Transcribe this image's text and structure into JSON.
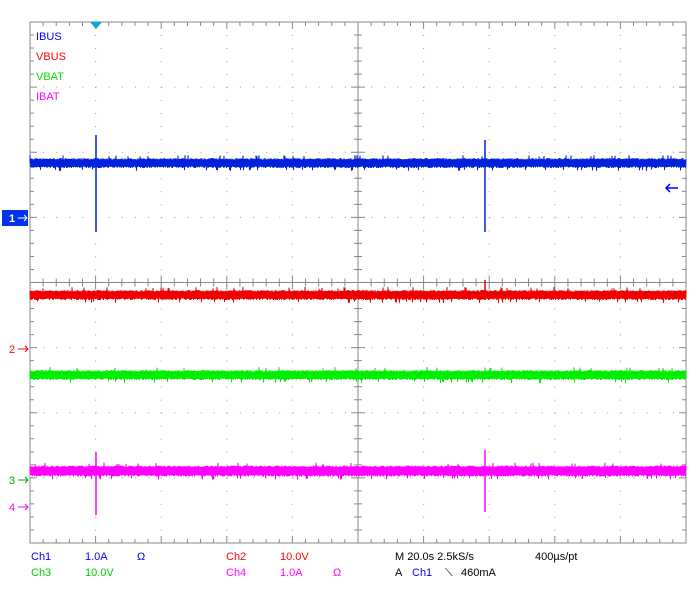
{
  "trace_labels": [
    {
      "text": "IBUS",
      "color": "#0000ff"
    },
    {
      "text": "VBUS",
      "color": "#ff0000"
    },
    {
      "text": "VBAT",
      "color": "#00dd00"
    },
    {
      "text": "IBAT",
      "color": "#ff00ff"
    }
  ],
  "channel_markers": [
    "1",
    "2",
    "3",
    "4"
  ],
  "channels": [
    {
      "name": "Ch1",
      "scale": "1.0A",
      "impedance": "Ω"
    },
    {
      "name": "Ch2",
      "scale": "10.0V"
    },
    {
      "name": "Ch3",
      "scale": "10.0V"
    },
    {
      "name": "Ch4",
      "scale": "1.0A",
      "impedance": "Ω"
    }
  ],
  "timebase": "M 20.0s 2.5kS/s",
  "record": "400µs/pt",
  "trigger": {
    "mode": "A",
    "source": "Ch1",
    "slope": "⟍",
    "level": "460mA"
  }
}
